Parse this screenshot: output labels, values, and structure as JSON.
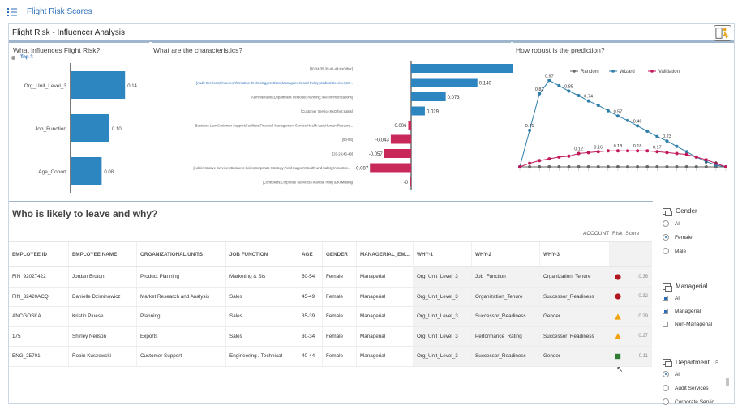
{
  "app": {
    "title": "Flight Risk Scores"
  },
  "header": {
    "title": "Flight Risk - Influencer Analysis"
  },
  "panels": {
    "influences": {
      "title": "What influences Flight Risk?",
      "top_label": "Top 3"
    },
    "characteristics": {
      "title": "What are the characteristics?"
    },
    "robustness": {
      "title": "How robust is the prediction?"
    }
  },
  "colors": {
    "accent": "#2a6ebb",
    "bar_blue": "#2e86c1",
    "bar_red": "#c8285a",
    "red_dot": "#b0171f",
    "amber": "#f0a30a",
    "green": "#2e7d32"
  },
  "chart_data": [
    {
      "type": "bar",
      "title": "What influences Flight Risk?",
      "categories": [
        "Org_Unit_Level_3",
        "Job_Function",
        "Age_Cohort"
      ],
      "values": [
        0.14,
        0.1,
        0.08
      ],
      "value_labels": [
        "0.14",
        "0.10",
        "0.08"
      ],
      "xlim": [
        0,
        0.15
      ]
    },
    {
      "type": "bar",
      "title": "What are the characteristics?",
      "categories": [
        "[30-34;35-39;40-44;KxOther]",
        "[Audit Services;Finance;Information Technology;KxOther;Management and Policy;Medical Services;Int...",
        "[Administration;Department Personel;Planning;Telecommunications]",
        "[Customer Service;KxOther;Sales]",
        "[Business Law;Customer Support;Facilities;Financial Management Service;Health Law;Human Resourc...",
        "[50-54]",
        "[20-24;45-49]",
        "[Administrative Services;Business Sales;Corporate Strategy;Field Support;Health and Safety;Infrastruc...",
        "[Controllers;Corporate Services;Financial Risk] & KxMissing"
      ],
      "values": [
        0.214,
        0.14,
        0.073,
        0.029,
        -0.006,
        -0.043,
        -0.057,
        -0.087,
        -0.003
      ],
      "value_labels": [
        "0.214",
        "0.140",
        "0.073",
        "0.029",
        "-0.006",
        "-0.043",
        "-0.057",
        "-0.087",
        "-0"
      ],
      "highlighted_category_index": 1,
      "xlim": [
        -0.1,
        0.22
      ]
    },
    {
      "type": "line",
      "title": "How robust is the prediction?",
      "legend": [
        "Random",
        "Wizard",
        "Validation"
      ],
      "legend_position": "top",
      "x": [
        0,
        1,
        2,
        3,
        4,
        5,
        6,
        7,
        8,
        9,
        10,
        11,
        12,
        13,
        14,
        15,
        16,
        17,
        18,
        19,
        20,
        21
      ],
      "series": [
        {
          "name": "Random",
          "values": [
            0,
            0,
            0,
            0,
            0,
            0,
            0,
            0,
            0,
            0,
            0,
            0,
            0,
            0,
            0,
            0,
            0,
            0,
            0,
            0,
            0,
            0
          ]
        },
        {
          "name": "Wizard",
          "values": [
            0,
            0.41,
            0.82,
            0.97,
            0.91,
            0.85,
            0.8,
            0.74,
            0.69,
            0.63,
            0.57,
            0.52,
            0.46,
            0.4,
            0.34,
            0.29,
            0.23,
            0.17,
            0.11,
            0.06,
            0.02,
            0
          ]
        },
        {
          "name": "Validation",
          "values": [
            0,
            0.04,
            0.07,
            0.09,
            0.11,
            0.12,
            0.15,
            0.16,
            0.17,
            0.18,
            0.18,
            0.18,
            0.18,
            0.18,
            0.17,
            0.16,
            0.15,
            0.14,
            0.11,
            0.08,
            0.04,
            0
          ]
        }
      ],
      "point_labels": [
        "0.41",
        "0.82",
        "0.97",
        "0.85",
        "0.74",
        "0.57",
        "0.46",
        "0.23",
        "0.12",
        "0.16",
        "0.18",
        "0.18",
        "0.17",
        "0",
        "0"
      ],
      "ylim": [
        0,
        1
      ]
    }
  ],
  "table": {
    "title": "Who is likely to leave and why?",
    "account_label": "ACCOUNT",
    "risk_header": "Risk_Score",
    "columns": [
      "EMPLOYEE ID",
      "EMPLOYEE NAME",
      "ORGANIZATIONAL UNITS",
      "JOB FUNCTION",
      "AGE",
      "GENDER",
      "MANAGERIAL_EM...",
      "WHY-1",
      "WHY-2",
      "WHY-3"
    ],
    "rows": [
      {
        "cells": [
          "FIN_92027422",
          "Jordan Bruton",
          "Product Planning",
          "Marketing & Sls",
          "50-54",
          "Female",
          "Managerial",
          "Org_Unit_Level_3",
          "Job_Function",
          "Organization_Tenure"
        ],
        "marker": "circle-red",
        "score": "0.36"
      },
      {
        "cells": [
          "FIN_32420ACQ",
          "Danielle Dziminowicz",
          "Market Research and Analysis",
          "Sales",
          "45-49",
          "Female",
          "Managerial",
          "Org_Unit_Level_3",
          "Organization_Tenure",
          "Successor_Readiness"
        ],
        "marker": "circle-red",
        "score": "0.32"
      },
      {
        "cells": [
          "ANCGOSKA",
          "Kristin Pluese",
          "Planning",
          "Sales",
          "35-39",
          "Female",
          "Managerial",
          "Org_Unit_Level_3",
          "Successor_Readiness",
          "Gender"
        ],
        "marker": "triangle-amber",
        "score": "0.29"
      },
      {
        "cells": [
          "175",
          "Shirley Neilson",
          "Exports",
          "Sales",
          "30-34",
          "Female",
          "Managerial",
          "Org_Unit_Level_3",
          "Performance_Rating",
          "Successor_Readiness"
        ],
        "marker": "triangle-amber",
        "score": "0.27"
      },
      {
        "cells": [
          "ENG_25701",
          "Robin Kuszewski",
          "Customer Support",
          "Engineering / Technical",
          "40-44",
          "Female",
          "Managerial",
          "Org_Unit_Level_3",
          "Successor_Readiness",
          "Gender"
        ],
        "marker": "square-green",
        "score": "0.11"
      }
    ]
  },
  "filters": {
    "gender": {
      "title": "Gender",
      "options": [
        "All",
        "Female",
        "Male"
      ],
      "selected": "Female"
    },
    "managerial": {
      "title": "Managerial...",
      "options": [
        "All",
        "Managerial",
        "Non-Managerial"
      ],
      "checked": [
        "All",
        "Managerial"
      ]
    },
    "department": {
      "title": "Department",
      "options": [
        "All",
        "Audit Services",
        "Corporate Servic..."
      ],
      "selected": "All"
    }
  }
}
